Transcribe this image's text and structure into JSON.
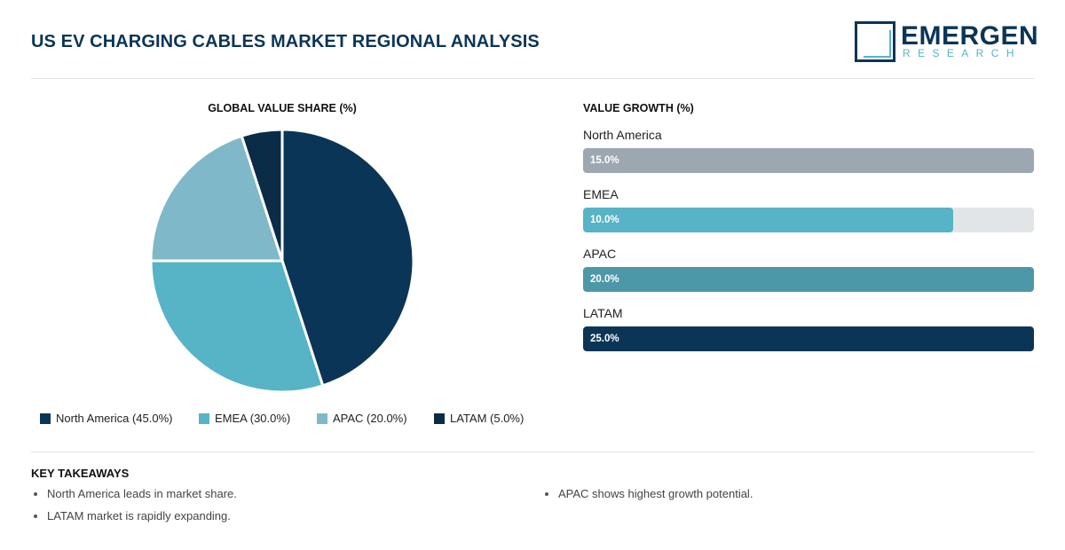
{
  "header": {
    "title": "US EV CHARGING CABLES MARKET REGIONAL ANALYSIS",
    "logo_word": "EMERGEN",
    "logo_sub": "RESEARCH"
  },
  "chart_data": [
    {
      "type": "pie",
      "title": "GLOBAL VALUE SHARE (%)",
      "categories": [
        "North America",
        "EMEA",
        "APAC",
        "LATAM"
      ],
      "values": [
        45.0,
        30.0,
        20.0,
        5.0
      ],
      "colors": [
        "#0b3557",
        "#57b3c6",
        "#7fb8c8",
        "#0a2c47"
      ],
      "legend_labels": [
        "North America (45.0%)",
        "EMEA (30.0%)",
        "APAC (20.0%)",
        "LATAM (5.0%)"
      ],
      "legend_position": "bottom"
    },
    {
      "type": "bar",
      "orientation": "horizontal",
      "title": "VALUE GROWTH (%)",
      "categories": [
        "North America",
        "EMEA",
        "APAC",
        "LATAM"
      ],
      "values": [
        15.0,
        10.0,
        20.0,
        25.0
      ],
      "value_labels": [
        "15.0%",
        "10.0%",
        "20.0%",
        "25.0%"
      ],
      "fill_fraction": [
        1.0,
        0.82,
        1.0,
        1.0
      ],
      "colors": [
        "#9ca7b1",
        "#57b3c6",
        "#4c97a8",
        "#0b3557"
      ]
    }
  ],
  "takeaways": {
    "title": "KEY TAKEAWAYS",
    "left": [
      "North America leads in market share.",
      "LATAM market is rapidly expanding."
    ],
    "right": [
      "APAC shows highest growth potential."
    ]
  }
}
